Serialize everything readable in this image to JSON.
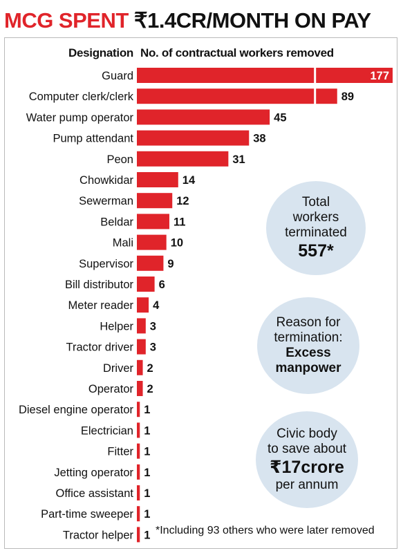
{
  "header": {
    "title_accent": "MCG SPENT",
    "title_rest": "₹1.4CR/MONTH ON PAY"
  },
  "colors": {
    "bar": "#e0242a",
    "bubble": "#d8e4ef"
  },
  "chart_data": {
    "type": "bar",
    "orientation": "horizontal",
    "category_header": "Designation",
    "value_header": "No. of contractual workers removed",
    "categories": [
      "Guard",
      "Computer clerk/clerk",
      "Water pump operator",
      "Pump attendant",
      "Peon",
      "Chowkidar",
      "Sewerman",
      "Beldar",
      "Mali",
      "Supervisor",
      "Bill distributor",
      "Meter reader",
      "Helper",
      "Tractor driver",
      "Driver",
      "Operator",
      "Diesel engine operator",
      "Electrician",
      "Fitter",
      "Jetting operator",
      "Office assistant",
      "Part-time sweeper",
      "Tractor helper"
    ],
    "values": [
      177,
      89,
      45,
      38,
      31,
      14,
      12,
      11,
      10,
      9,
      6,
      4,
      3,
      3,
      2,
      2,
      1,
      1,
      1,
      1,
      1,
      1,
      1
    ],
    "axis_break": true,
    "grid": false,
    "legend": "none"
  },
  "callouts": {
    "total": {
      "l1": "Total",
      "l2": "workers",
      "l3": "terminated",
      "value": "557*"
    },
    "reason": {
      "l1": "Reason for",
      "l2": "termination:",
      "l3": "Excess",
      "l4": "manpower"
    },
    "savings": {
      "l1": "Civic body",
      "l2": "to save about",
      "value": "₹17crore",
      "l3": "per annum"
    }
  },
  "footnote": "*Including 93 others who were later removed"
}
